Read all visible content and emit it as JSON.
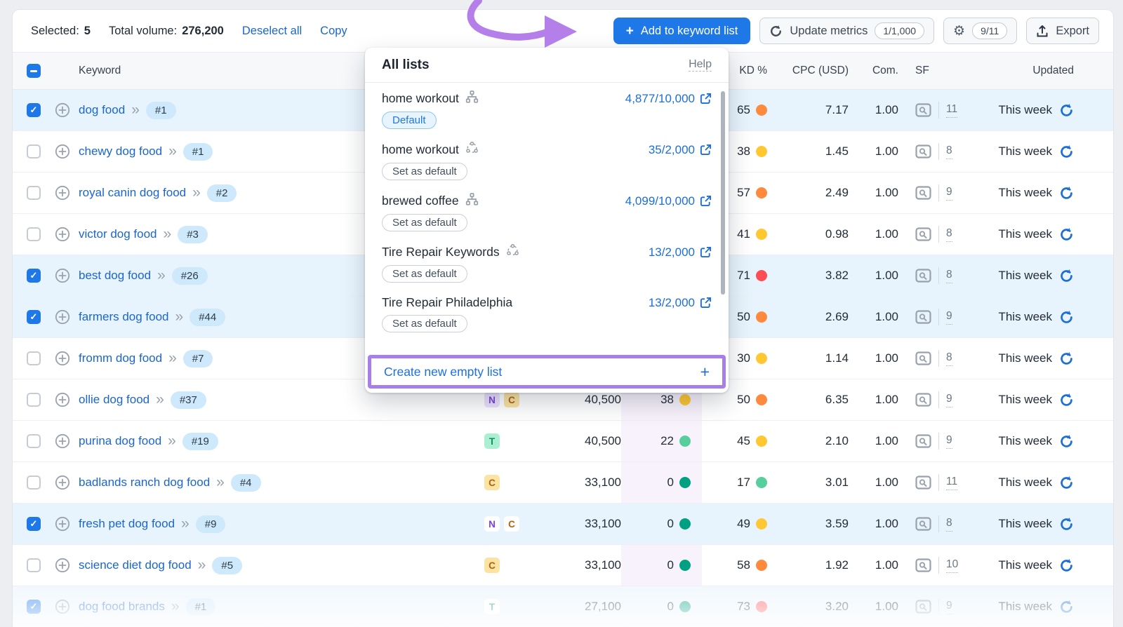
{
  "toolbar": {
    "selected_label": "Selected:",
    "selected_count": "5",
    "total_volume_label": "Total volume:",
    "total_volume": "276,200",
    "deselect_all": "Deselect all",
    "copy": "Copy",
    "add_to_list": "Add to keyword list",
    "add_plus": "+",
    "update_metrics": "Update metrics",
    "update_quota": "1/1,000",
    "settings_quota": "9/11",
    "export": "Export"
  },
  "dropdown": {
    "title": "All lists",
    "help": "Help",
    "items": [
      {
        "name": "home workout",
        "icon": "org-chart",
        "count": "4,877/10,000",
        "badge": "Default",
        "badge_type": "default"
      },
      {
        "name": "home workout",
        "icon": "cluster",
        "count": "35/2,000",
        "badge": "Set as default",
        "badge_type": "action"
      },
      {
        "name": "brewed coffee",
        "icon": "org-chart",
        "count": "4,099/10,000",
        "badge": "Set as default",
        "badge_type": "action"
      },
      {
        "name": "Tire Repair Keywords",
        "icon": "cluster",
        "count": "13/2,000",
        "badge": "Set as default",
        "badge_type": "action"
      },
      {
        "name": "Tire Repair Philadelphia",
        "icon": "none",
        "count": "13/2,000",
        "badge": "Set as default",
        "badge_type": "action"
      }
    ],
    "footer": {
      "label": "Create new empty list",
      "plus": "+"
    }
  },
  "table": {
    "headers": {
      "keyword": "Keyword",
      "kd": "KD %",
      "cpc": "CPC (USD)",
      "com": "Com.",
      "sf": "SF",
      "updated": "Updated"
    },
    "rows": [
      {
        "keyword": "dog food",
        "rank": "#1",
        "checked": true,
        "selected": true,
        "faded": false,
        "intents": [],
        "volume": "",
        "pkd": null,
        "kd": {
          "v": "65",
          "c": "#ff8a3d"
        },
        "cpc": "7.17",
        "com": "1.00",
        "sf": "11",
        "updated": "This week"
      },
      {
        "keyword": "chewy dog food",
        "rank": "#1",
        "checked": false,
        "selected": false,
        "faded": false,
        "intents": [],
        "volume": "",
        "pkd": null,
        "kd": {
          "v": "38",
          "c": "#ffc731"
        },
        "cpc": "1.45",
        "com": "1.00",
        "sf": "8",
        "updated": "This week"
      },
      {
        "keyword": "royal canin dog food",
        "rank": "#2",
        "checked": false,
        "selected": false,
        "faded": false,
        "intents": [],
        "volume": "",
        "pkd": null,
        "kd": {
          "v": "57",
          "c": "#ff8a3d"
        },
        "cpc": "2.49",
        "com": "1.00",
        "sf": "9",
        "updated": "This week"
      },
      {
        "keyword": "victor dog food",
        "rank": "#3",
        "checked": false,
        "selected": false,
        "faded": false,
        "intents": [],
        "volume": "",
        "pkd": null,
        "kd": {
          "v": "41",
          "c": "#ffc731"
        },
        "cpc": "0.98",
        "com": "1.00",
        "sf": "8",
        "updated": "This week"
      },
      {
        "keyword": "best dog food",
        "rank": "#26",
        "checked": true,
        "selected": true,
        "faded": false,
        "intents": [],
        "volume": "",
        "pkd": null,
        "kd": {
          "v": "71",
          "c": "#ff4e53"
        },
        "cpc": "3.82",
        "com": "1.00",
        "sf": "8",
        "updated": "This week"
      },
      {
        "keyword": "farmers dog food",
        "rank": "#44",
        "checked": true,
        "selected": true,
        "faded": false,
        "intents": [],
        "volume": "",
        "pkd": null,
        "kd": {
          "v": "50",
          "c": "#ff8a3d"
        },
        "cpc": "2.69",
        "com": "1.00",
        "sf": "9",
        "updated": "This week"
      },
      {
        "keyword": "fromm dog food",
        "rank": "#7",
        "checked": false,
        "selected": false,
        "faded": false,
        "intents": [],
        "volume": "",
        "pkd": null,
        "kd": {
          "v": "30",
          "c": "#ffc731"
        },
        "cpc": "1.14",
        "com": "1.00",
        "sf": "8",
        "updated": "This week"
      },
      {
        "keyword": "ollie dog food",
        "rank": "#37",
        "checked": false,
        "selected": false,
        "faded": false,
        "intents": [
          "N",
          "C"
        ],
        "volume": "40,500",
        "pkd": {
          "v": "38",
          "c": "#ffc731"
        },
        "kd": {
          "v": "50",
          "c": "#ff8a3d"
        },
        "cpc": "6.35",
        "com": "1.00",
        "sf": "9",
        "updated": "This week"
      },
      {
        "keyword": "purina dog food",
        "rank": "#19",
        "checked": false,
        "selected": false,
        "faded": false,
        "intents": [
          "T"
        ],
        "volume": "40,500",
        "pkd": {
          "v": "22",
          "c": "#57cf9d"
        },
        "kd": {
          "v": "45",
          "c": "#ffc731"
        },
        "cpc": "2.10",
        "com": "1.00",
        "sf": "9",
        "updated": "This week"
      },
      {
        "keyword": "badlands ranch dog food",
        "rank": "#4",
        "checked": false,
        "selected": false,
        "faded": false,
        "intents": [
          "C"
        ],
        "volume": "33,100",
        "pkd": {
          "v": "0",
          "c": "#00a083"
        },
        "kd": {
          "v": "17",
          "c": "#57cf9d"
        },
        "cpc": "3.01",
        "com": "1.00",
        "sf": "11",
        "updated": "This week"
      },
      {
        "keyword": "fresh pet dog food",
        "rank": "#9",
        "checked": true,
        "selected": true,
        "faded": false,
        "intents": [
          "N",
          "C"
        ],
        "volume": "33,100",
        "pkd": {
          "v": "0",
          "c": "#00a083"
        },
        "kd": {
          "v": "49",
          "c": "#ffc731"
        },
        "cpc": "3.59",
        "com": "1.00",
        "sf": "8",
        "updated": "This week"
      },
      {
        "keyword": "science diet dog food",
        "rank": "#5",
        "checked": false,
        "selected": false,
        "faded": false,
        "intents": [
          "C"
        ],
        "volume": "33,100",
        "pkd": {
          "v": "0",
          "c": "#00a083"
        },
        "kd": {
          "v": "58",
          "c": "#ff8a3d"
        },
        "cpc": "1.92",
        "com": "1.00",
        "sf": "10",
        "updated": "This week"
      },
      {
        "keyword": "dog food brands",
        "rank": "#1",
        "checked": true,
        "selected": true,
        "faded": true,
        "intents": [
          "T"
        ],
        "volume": "27,100",
        "pkd": {
          "v": "0",
          "c": "#00a083"
        },
        "kd": {
          "v": "73",
          "c": "#ff4e53"
        },
        "cpc": "3.20",
        "com": "1.00",
        "sf": "9",
        "updated": "This week"
      }
    ]
  },
  "colors": {
    "accent_blue": "#1f78e8",
    "link_blue": "#1b66cc",
    "annotation_purple": "#b57fe9",
    "selected_row": "#e8f4fd",
    "pkd_column": "#f8f2fc",
    "intent_styles": {
      "N": {
        "bg": "#ece1fc",
        "fg": "#7b40e4"
      },
      "C": {
        "bg": "#fbe3a3",
        "fg": "#b4610f"
      },
      "T": {
        "bg": "#abefd2",
        "fg": "#0f8f61"
      }
    },
    "dot_orange": "#ff8a3d",
    "dot_yellow": "#ffc731",
    "dot_red": "#ff4e53",
    "dot_green": "#57cf9d",
    "dot_teal": "#00a083"
  }
}
